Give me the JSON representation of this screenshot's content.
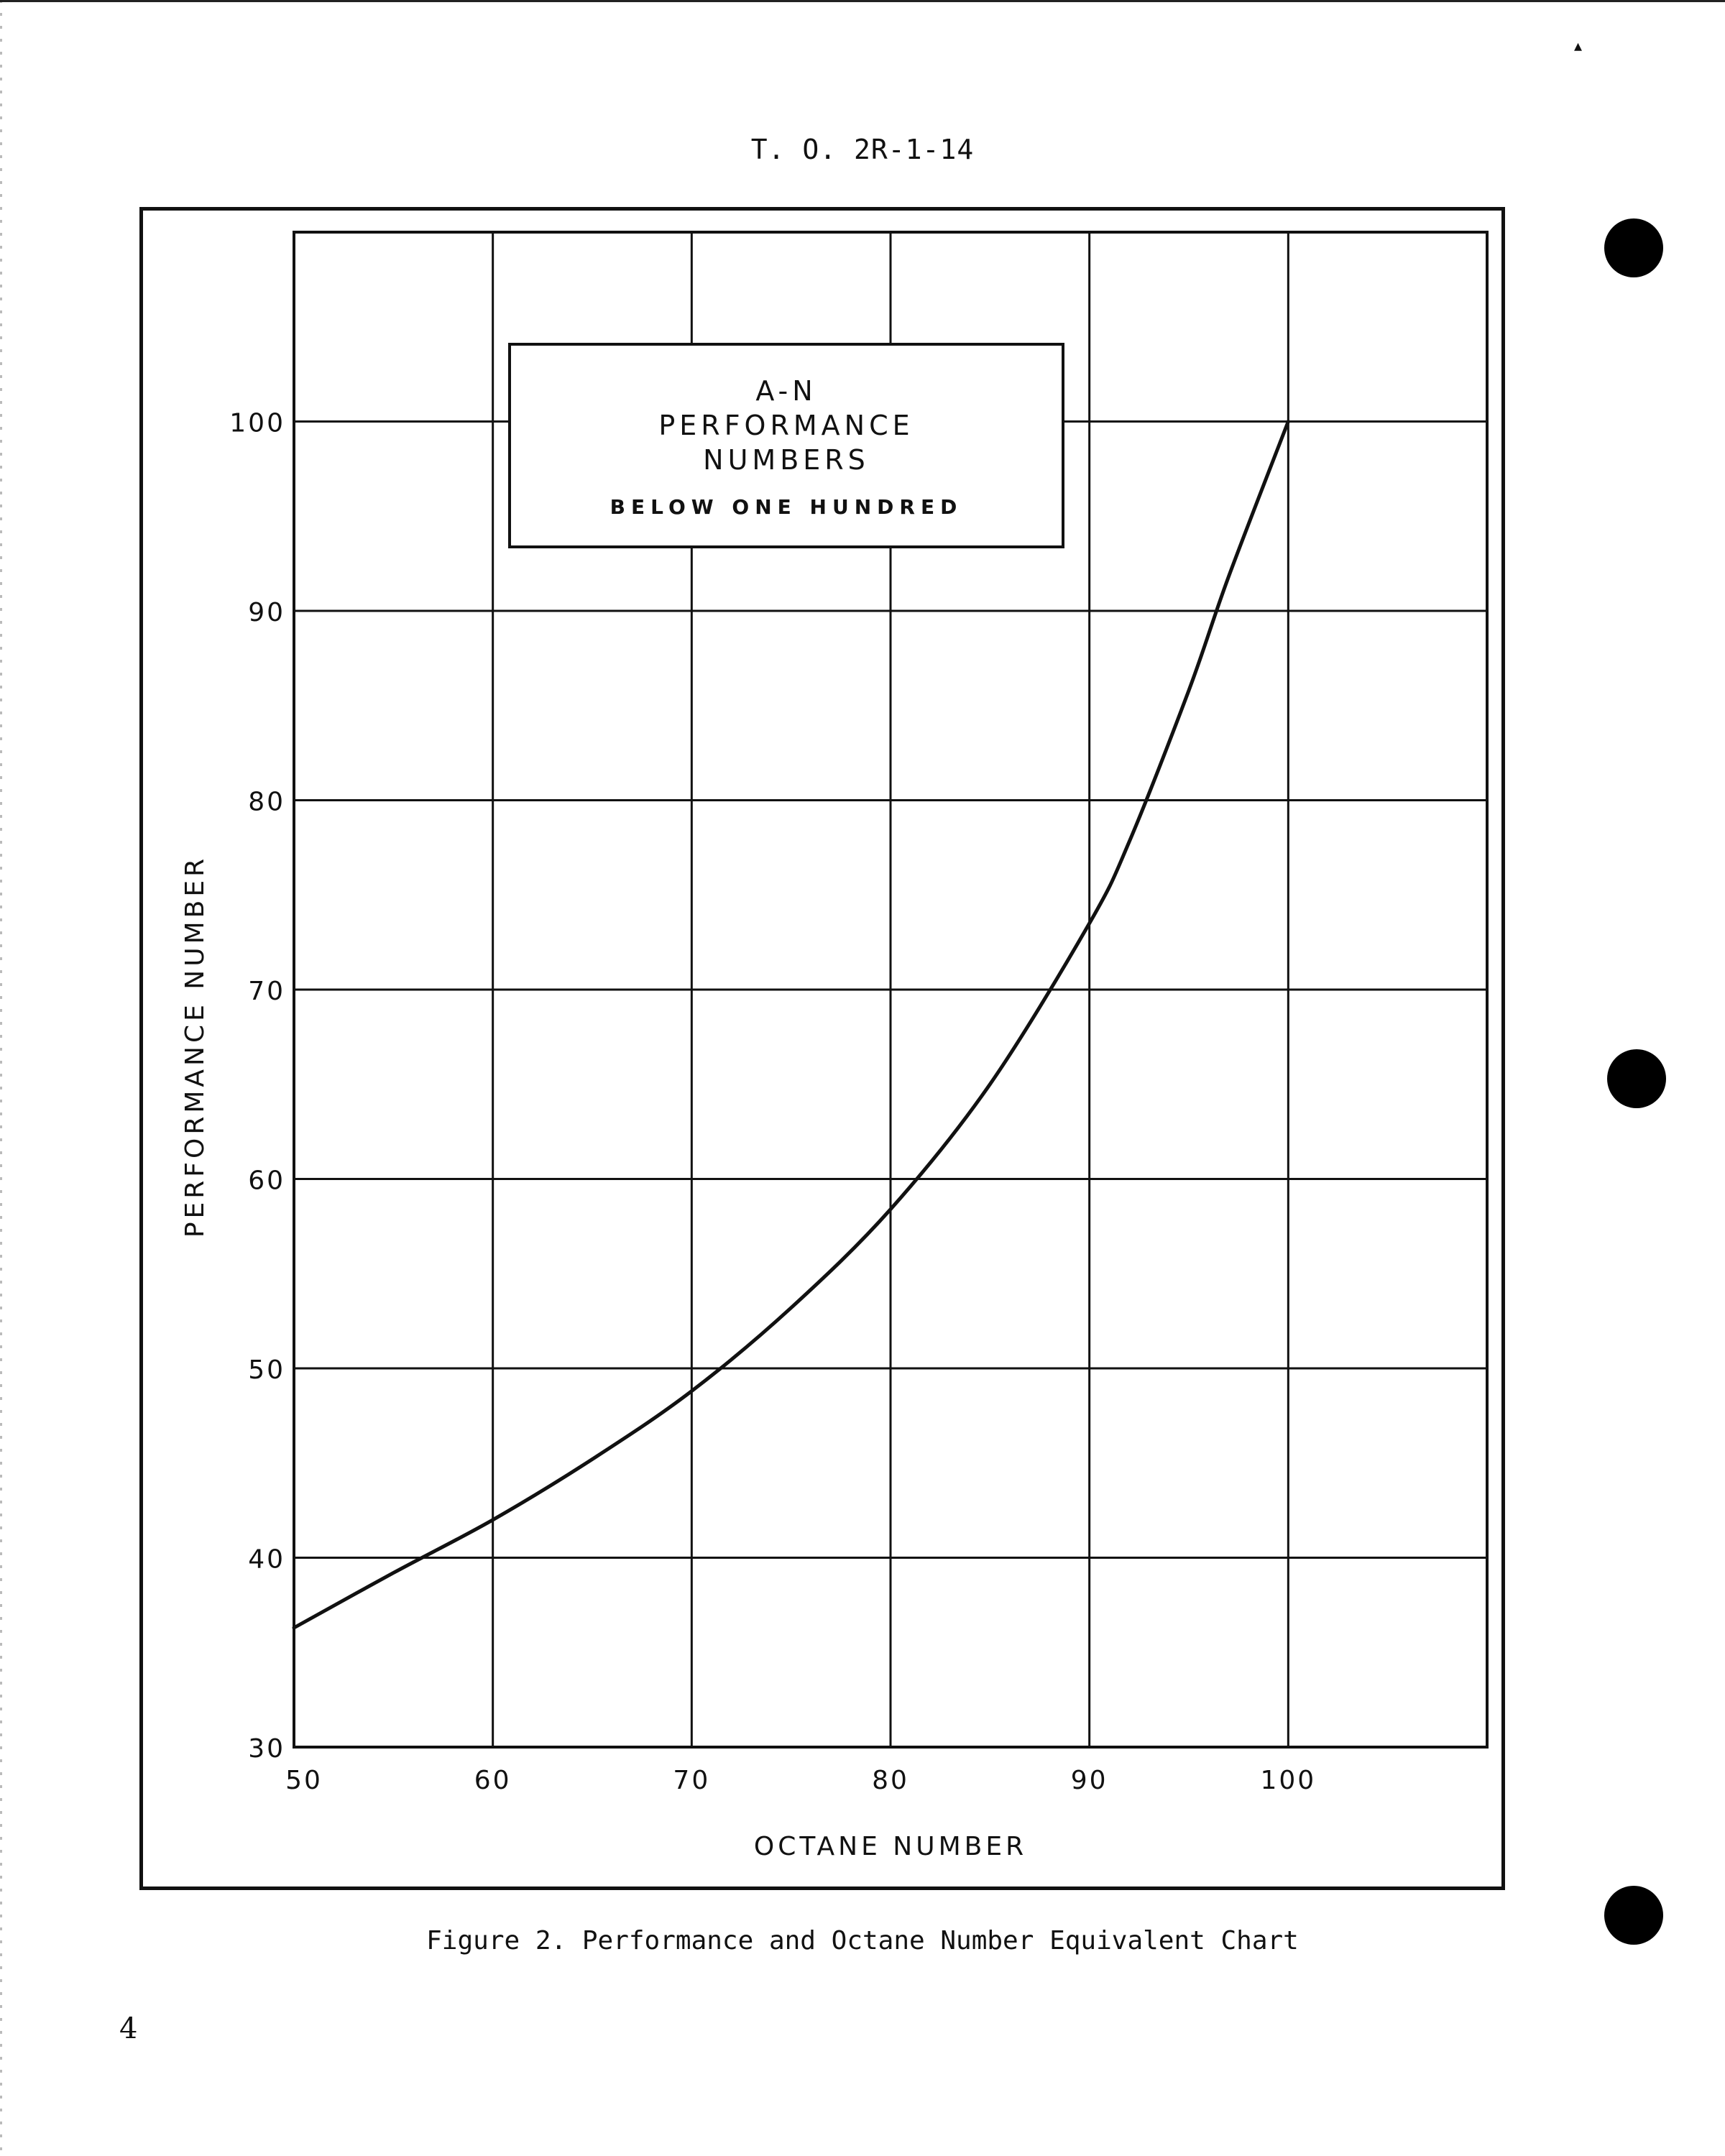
{
  "header": {
    "doc_id": "T. O. 2R-1-14",
    "corner_mark": "▴"
  },
  "figure": {
    "caption": "Figure 2.  Performance and Octane Number Equivalent Chart"
  },
  "page": {
    "number": "4"
  },
  "chart_data": {
    "type": "line",
    "title_lines": [
      "A-N",
      "PERFORMANCE",
      "NUMBERS",
      "BELOW ONE HUNDRED"
    ],
    "xlabel": "OCTANE NUMBER",
    "ylabel": "PERFORMANCE NUMBER",
    "xlim": [
      50,
      110
    ],
    "ylim": [
      30,
      110
    ],
    "xticks": [
      50,
      60,
      70,
      80,
      90,
      100
    ],
    "yticks": [
      30,
      40,
      50,
      60,
      70,
      80,
      90,
      100
    ],
    "grid": true,
    "series": [
      {
        "x": [
          50,
          55,
          60,
          65,
          70,
          75,
          80,
          85,
          90,
          92,
          95,
          97,
          100
        ],
        "y": [
          36.3,
          39.2,
          42.0,
          45.2,
          48.8,
          53.2,
          58.4,
          65.0,
          73.5,
          77.8,
          85.8,
          91.8,
          100
        ]
      }
    ]
  },
  "colors": {
    "ink": "#111111",
    "paper": "#ffffff"
  }
}
